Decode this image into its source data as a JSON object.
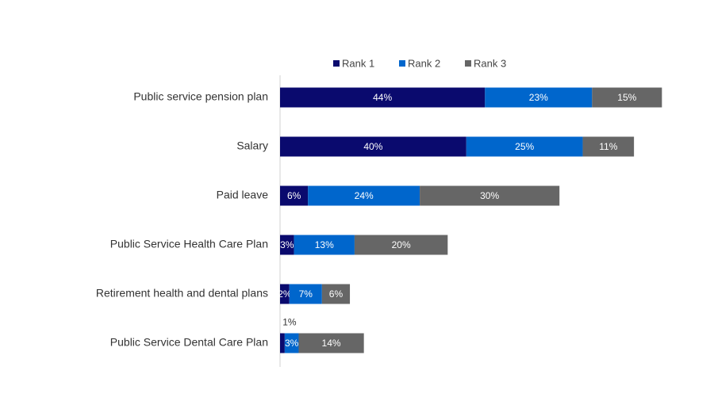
{
  "chart_data": {
    "type": "stacked-bar-horizontal",
    "categories": [
      "Public service pension plan",
      "Salary",
      "Paid leave",
      "Public Service Health Care Plan",
      "Retirement health and dental plans",
      "Public Service Dental Care Plan"
    ],
    "series": [
      {
        "name": "Rank 1",
        "color": "#0a0a6e",
        "values": [
          44,
          40,
          6,
          3,
          2,
          1
        ],
        "value_labels": [
          "44%",
          "40%",
          "6%",
          "3%",
          "2%",
          "1%"
        ]
      },
      {
        "name": "Rank 2",
        "color": "#0066cc",
        "values": [
          23,
          25,
          24,
          13,
          7,
          3
        ],
        "value_labels": [
          "23%",
          "25%",
          "24%",
          "13%",
          "7%",
          "3%"
        ]
      },
      {
        "name": "Rank 3",
        "color": "#666666",
        "values": [
          15,
          11,
          30,
          20,
          6,
          14
        ],
        "value_labels": [
          "15%",
          "11%",
          "30%",
          "20%",
          "6%",
          "14%"
        ]
      }
    ],
    "legend": "top"
  }
}
